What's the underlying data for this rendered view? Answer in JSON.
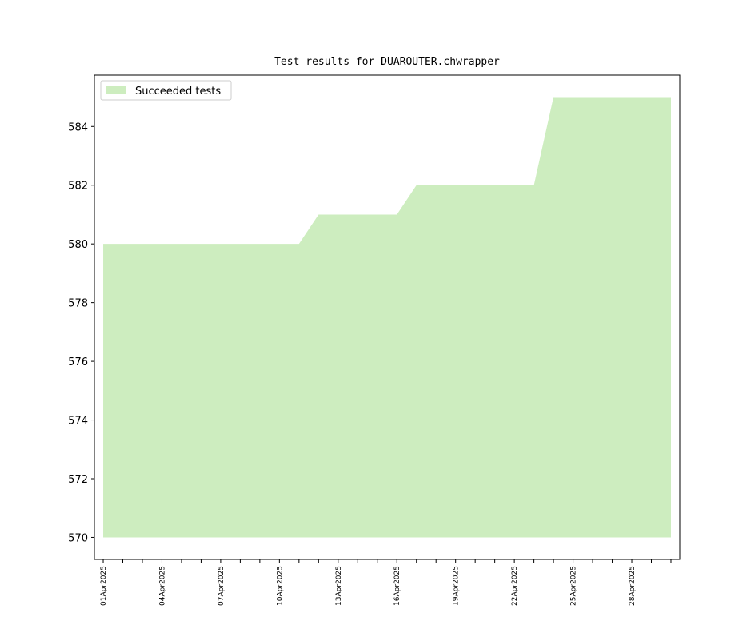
{
  "chart_data": {
    "type": "area",
    "title": "Test results for DUAROUTER.chwrapper",
    "x": [
      "2025-04-01",
      "2025-04-02",
      "2025-04-03",
      "2025-04-04",
      "2025-04-05",
      "2025-04-06",
      "2025-04-07",
      "2025-04-08",
      "2025-04-09",
      "2025-04-10",
      "2025-04-11",
      "2025-04-12",
      "2025-04-13",
      "2025-04-14",
      "2025-04-15",
      "2025-04-16",
      "2025-04-17",
      "2025-04-18",
      "2025-04-19",
      "2025-04-20",
      "2025-04-21",
      "2025-04-22",
      "2025-04-23",
      "2025-04-24",
      "2025-04-25",
      "2025-04-26",
      "2025-04-27",
      "2025-04-28",
      "2025-04-29",
      "2025-04-30"
    ],
    "series": [
      {
        "name": "Succeeded tests",
        "color": "#cdedbf",
        "values": [
          580,
          580,
          580,
          580,
          580,
          580,
          580,
          580,
          580,
          580,
          580,
          581,
          581,
          581,
          581,
          581,
          582,
          582,
          582,
          582,
          582,
          582,
          582,
          585,
          585,
          585,
          585,
          585,
          585,
          585
        ]
      }
    ],
    "baseline": 570,
    "xlim": [
      "2025-03-31T13:12",
      "2025-04-30T10:48"
    ],
    "xticks": [
      {
        "value": "2025-04-01",
        "label": "01Apr2025"
      },
      {
        "value": "2025-04-04",
        "label": "04Apr2025"
      },
      {
        "value": "2025-04-07",
        "label": "07Apr2025"
      },
      {
        "value": "2025-04-10",
        "label": "10Apr2025"
      },
      {
        "value": "2025-04-13",
        "label": "13Apr2025"
      },
      {
        "value": "2025-04-16",
        "label": "16Apr2025"
      },
      {
        "value": "2025-04-19",
        "label": "19Apr2025"
      },
      {
        "value": "2025-04-22",
        "label": "22Apr2025"
      },
      {
        "value": "2025-04-25",
        "label": "25Apr2025"
      },
      {
        "value": "2025-04-28",
        "label": "28Apr2025"
      }
    ],
    "xminor_ticks": [
      "2025-04-02",
      "2025-04-03",
      "2025-04-05",
      "2025-04-06",
      "2025-04-08",
      "2025-04-09",
      "2025-04-11",
      "2025-04-12",
      "2025-04-14",
      "2025-04-15",
      "2025-04-17",
      "2025-04-18",
      "2025-04-20",
      "2025-04-21",
      "2025-04-23",
      "2025-04-24",
      "2025-04-26",
      "2025-04-27",
      "2025-04-29",
      "2025-04-30"
    ],
    "ylim": [
      569.25,
      585.75
    ],
    "yticks": [
      570,
      572,
      574,
      576,
      578,
      580,
      582,
      584
    ],
    "legend": "upper left"
  }
}
